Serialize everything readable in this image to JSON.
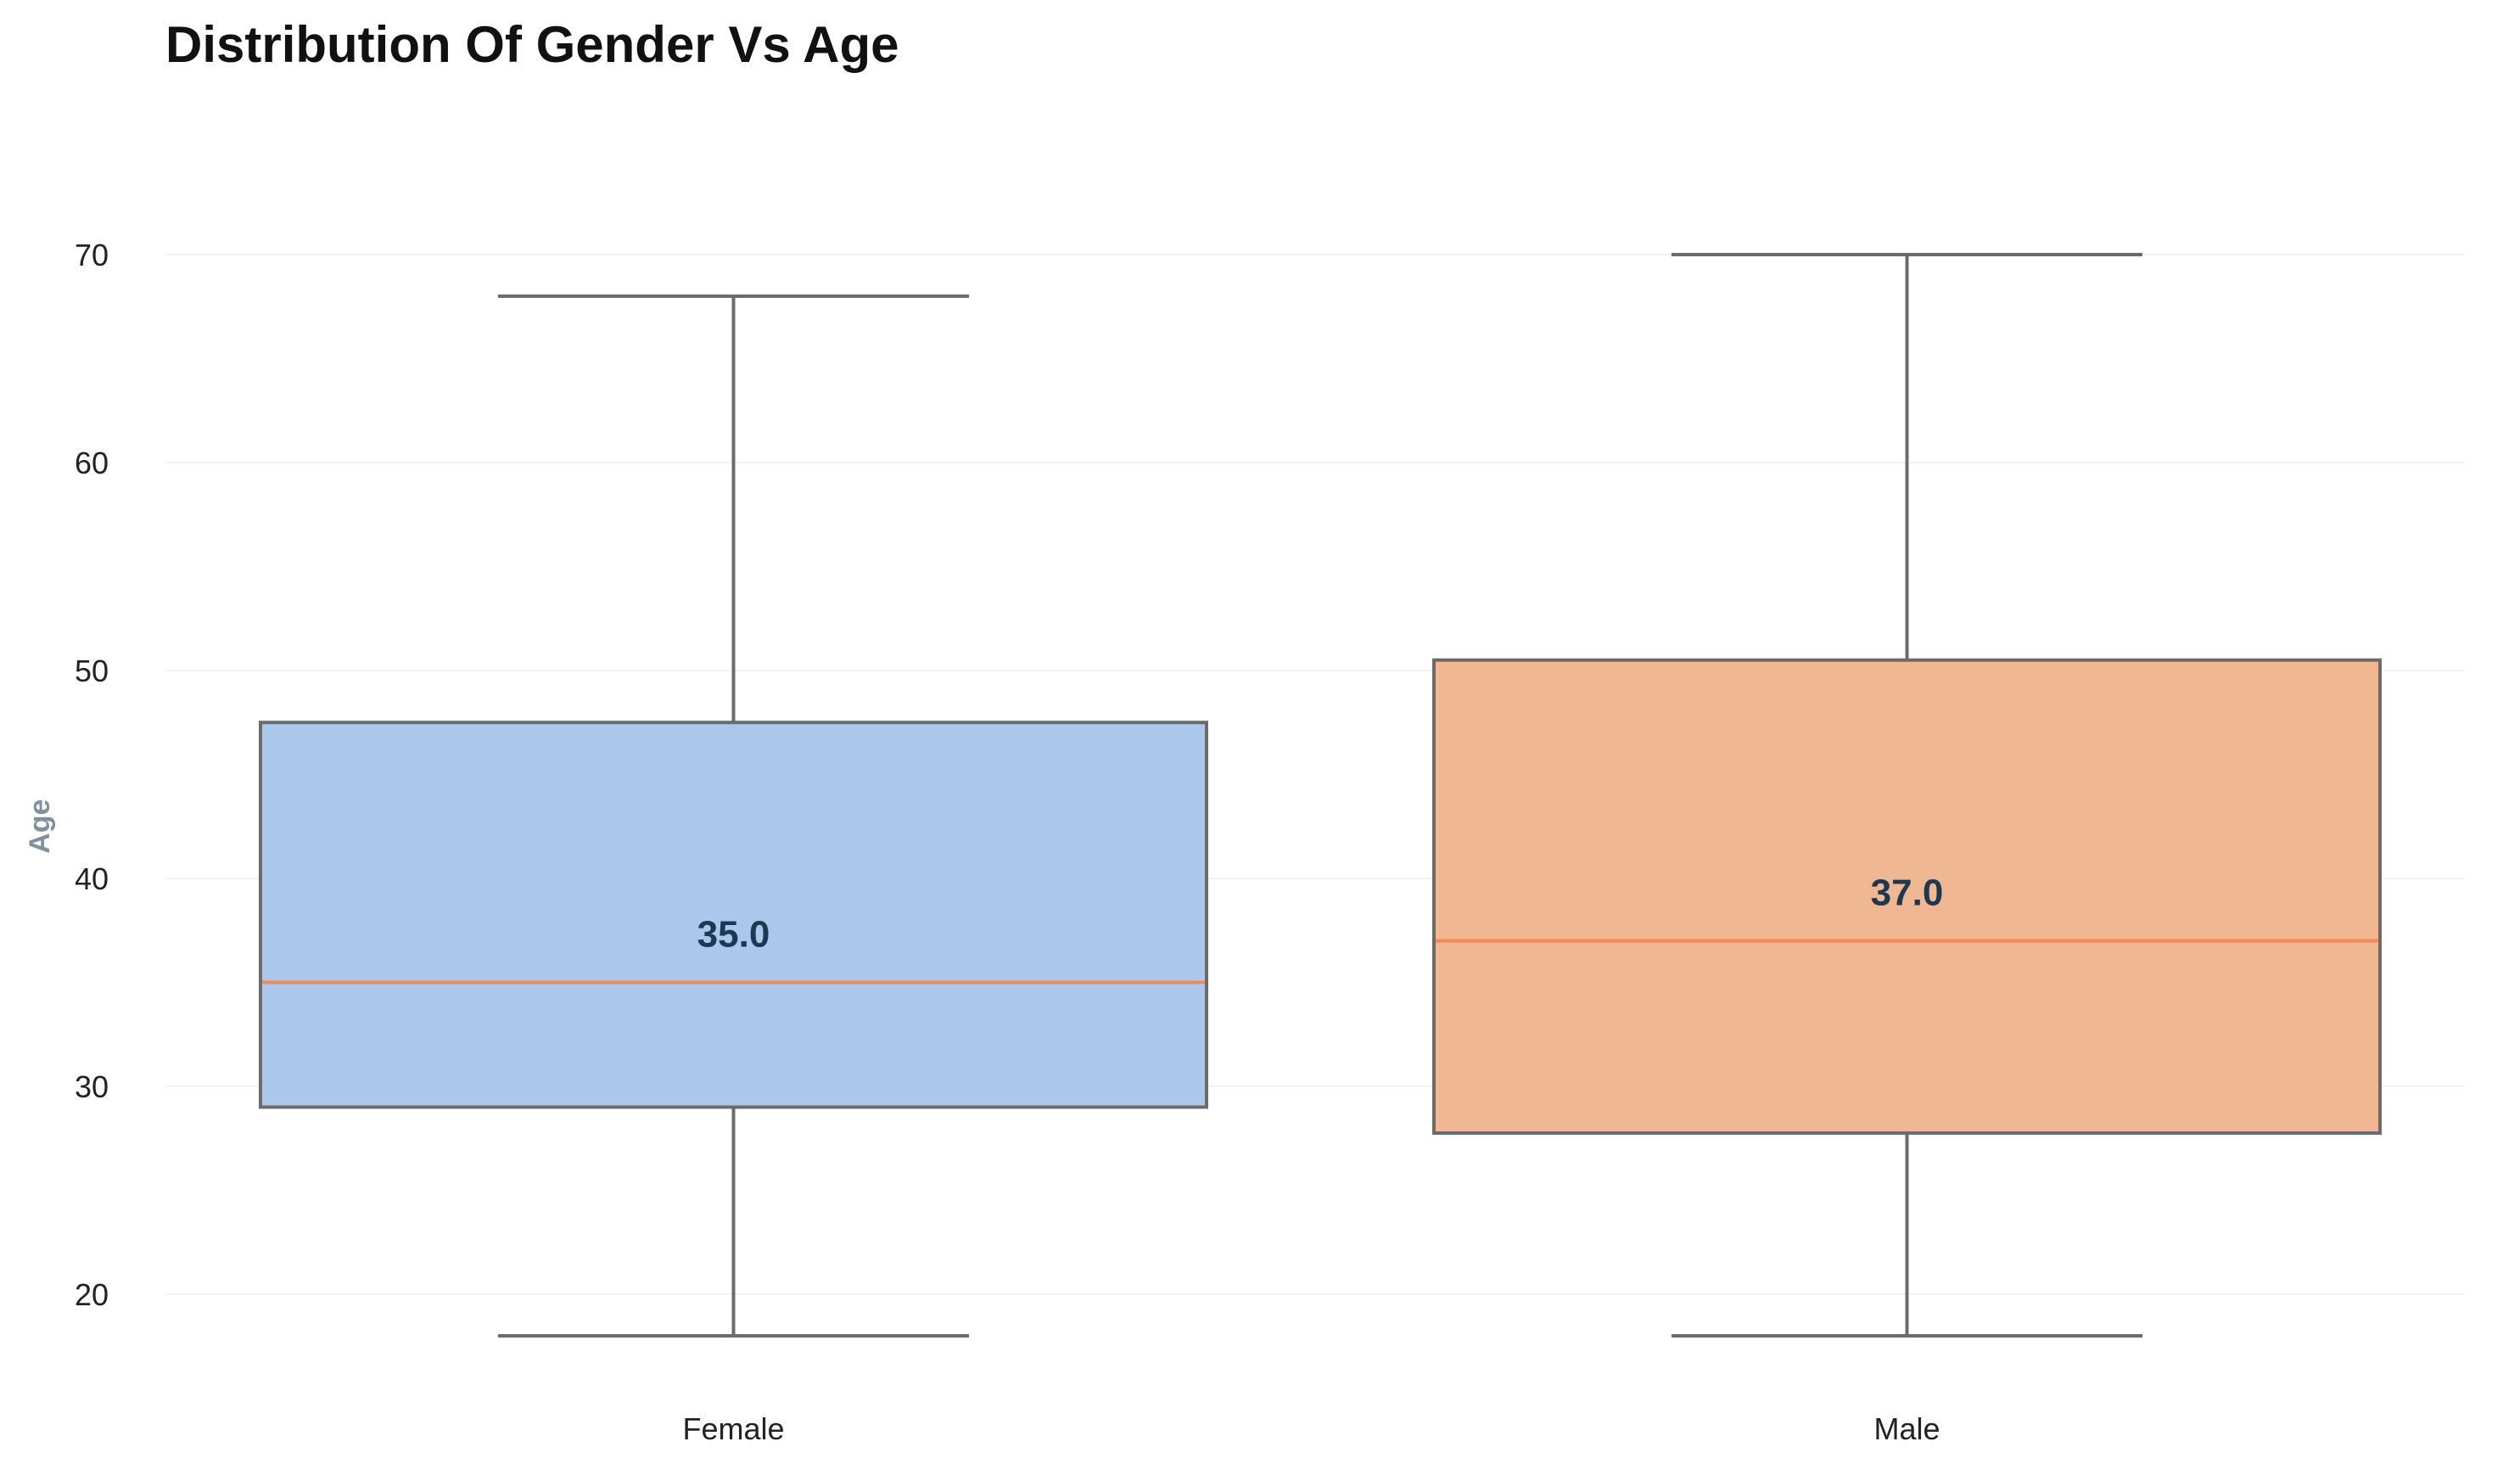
{
  "chart_data": {
    "type": "box",
    "title": "Distribution Of Gender Vs Age",
    "xlabel": "",
    "ylabel": "Age",
    "ylim": [
      15,
      75
    ],
    "yticks": [
      20,
      30,
      40,
      50,
      60,
      70
    ],
    "grid": true,
    "categories": [
      "Female",
      "Male"
    ],
    "boxes": [
      {
        "category": "Female",
        "min": 18,
        "q1": 29,
        "median": 35,
        "q3": 47.5,
        "max": 68,
        "median_label": "35.0",
        "color": "#abc8ec"
      },
      {
        "category": "Male",
        "min": 18,
        "q1": 27.75,
        "median": 37,
        "q3": 50.5,
        "max": 70,
        "median_label": "37.0",
        "color": "#f0b793"
      }
    ],
    "colors": {
      "median_line": "#f4875a",
      "box_edge": "#6b6b6b",
      "median_text": "#1b3a52",
      "grid": "#f2f2f2"
    }
  }
}
